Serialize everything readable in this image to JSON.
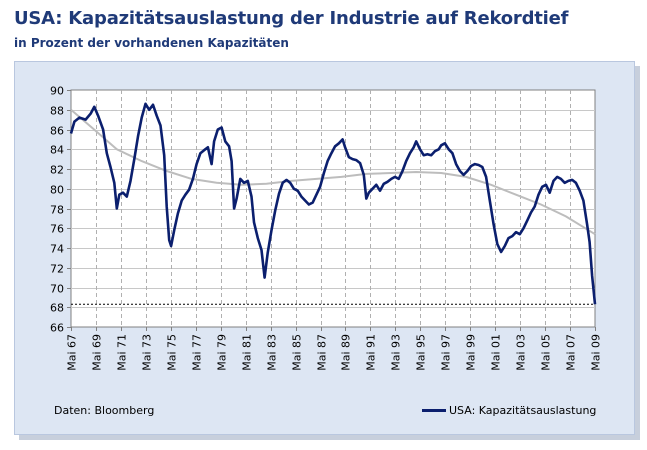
{
  "header": {
    "title": "USA: Kapazitätsauslastung der Industrie auf Rekordtief",
    "subtitle": "in Prozent der vorhandenen Kapazitäten"
  },
  "source": "Daten: Bloomberg",
  "colors": {
    "series": "#0b1f6e",
    "trend": "#bdbdbd",
    "plot_bg": "#ffffff",
    "panel_bg": "#dde6f3",
    "title": "#1f3a78"
  },
  "chart_data": {
    "type": "line",
    "title": "USA: Kapazitätsauslastung der Industrie auf Rekordtief",
    "subtitle": "in Prozent der vorhandenen Kapazitäten",
    "xlabel": "",
    "ylabel": "",
    "xlim": [
      1967.33,
      2009.33
    ],
    "ylim": [
      66,
      90
    ],
    "grid": true,
    "yticks": [
      66,
      68,
      70,
      72,
      74,
      76,
      78,
      80,
      82,
      84,
      86,
      88,
      90
    ],
    "xticks": [
      {
        "year": 1967.33,
        "label": "Mai 67"
      },
      {
        "year": 1969.33,
        "label": "Mai 69"
      },
      {
        "year": 1971.33,
        "label": "Mai 71"
      },
      {
        "year": 1973.33,
        "label": "Mai 73"
      },
      {
        "year": 1975.33,
        "label": "Mai 75"
      },
      {
        "year": 1977.33,
        "label": "Mai 77"
      },
      {
        "year": 1979.33,
        "label": "Mai 79"
      },
      {
        "year": 1981.33,
        "label": "Mai 81"
      },
      {
        "year": 1983.33,
        "label": "Mai 83"
      },
      {
        "year": 1985.33,
        "label": "Mai 85"
      },
      {
        "year": 1987.33,
        "label": "Mai 87"
      },
      {
        "year": 1989.33,
        "label": "Mai 89"
      },
      {
        "year": 1991.33,
        "label": "Mai 91"
      },
      {
        "year": 1993.33,
        "label": "Mai 93"
      },
      {
        "year": 1995.33,
        "label": "Mai 95"
      },
      {
        "year": 1997.33,
        "label": "Mai 97"
      },
      {
        "year": 1999.33,
        "label": "Mai 99"
      },
      {
        "year": 2001.33,
        "label": "Mai 01"
      },
      {
        "year": 2003.33,
        "label": "Mai 03"
      },
      {
        "year": 2005.33,
        "label": "Mai 05"
      },
      {
        "year": 2007.33,
        "label": "Mai 07"
      },
      {
        "year": 2009.33,
        "label": "Mai 09"
      }
    ],
    "series": [
      {
        "name": "USA: Kapazitätsauslastung",
        "points": [
          [
            1967.33,
            85.6
          ],
          [
            1967.6,
            86.8
          ],
          [
            1968.0,
            87.2
          ],
          [
            1968.5,
            87.0
          ],
          [
            1968.9,
            87.6
          ],
          [
            1969.2,
            88.3
          ],
          [
            1969.5,
            87.4
          ],
          [
            1969.9,
            86.0
          ],
          [
            1970.2,
            83.6
          ],
          [
            1970.5,
            82.2
          ],
          [
            1970.8,
            80.6
          ],
          [
            1971.0,
            78.0
          ],
          [
            1971.2,
            79.4
          ],
          [
            1971.5,
            79.6
          ],
          [
            1971.8,
            79.2
          ],
          [
            1972.1,
            80.8
          ],
          [
            1972.4,
            83.0
          ],
          [
            1972.7,
            85.3
          ],
          [
            1973.0,
            87.2
          ],
          [
            1973.3,
            88.6
          ],
          [
            1973.6,
            88.0
          ],
          [
            1973.9,
            88.5
          ],
          [
            1974.2,
            87.4
          ],
          [
            1974.5,
            86.4
          ],
          [
            1974.8,
            83.4
          ],
          [
            1975.0,
            78.2
          ],
          [
            1975.2,
            74.8
          ],
          [
            1975.35,
            74.2
          ],
          [
            1975.6,
            75.8
          ],
          [
            1975.9,
            77.5
          ],
          [
            1976.2,
            78.8
          ],
          [
            1976.5,
            79.4
          ],
          [
            1976.8,
            79.9
          ],
          [
            1977.1,
            81.0
          ],
          [
            1977.4,
            82.5
          ],
          [
            1977.7,
            83.6
          ],
          [
            1978.0,
            83.9
          ],
          [
            1978.3,
            84.2
          ],
          [
            1978.6,
            82.5
          ],
          [
            1978.8,
            84.8
          ],
          [
            1979.1,
            86.0
          ],
          [
            1979.4,
            86.2
          ],
          [
            1979.7,
            84.8
          ],
          [
            1980.0,
            84.3
          ],
          [
            1980.2,
            82.8
          ],
          [
            1980.4,
            78.0
          ],
          [
            1980.6,
            79.0
          ],
          [
            1980.9,
            81.0
          ],
          [
            1981.2,
            80.6
          ],
          [
            1981.5,
            80.8
          ],
          [
            1981.8,
            79.2
          ],
          [
            1982.0,
            76.6
          ],
          [
            1982.3,
            75.0
          ],
          [
            1982.6,
            73.8
          ],
          [
            1982.85,
            71.0
          ],
          [
            1983.1,
            73.5
          ],
          [
            1983.4,
            75.8
          ],
          [
            1983.7,
            77.8
          ],
          [
            1984.0,
            79.5
          ],
          [
            1984.3,
            80.6
          ],
          [
            1984.6,
            80.9
          ],
          [
            1984.9,
            80.6
          ],
          [
            1985.2,
            80.0
          ],
          [
            1985.5,
            79.8
          ],
          [
            1985.8,
            79.2
          ],
          [
            1986.1,
            78.8
          ],
          [
            1986.4,
            78.4
          ],
          [
            1986.7,
            78.6
          ],
          [
            1987.0,
            79.4
          ],
          [
            1987.3,
            80.2
          ],
          [
            1987.6,
            81.6
          ],
          [
            1987.9,
            82.8
          ],
          [
            1988.2,
            83.6
          ],
          [
            1988.5,
            84.3
          ],
          [
            1988.8,
            84.6
          ],
          [
            1989.1,
            85.0
          ],
          [
            1989.3,
            84.2
          ],
          [
            1989.6,
            83.2
          ],
          [
            1989.9,
            83.0
          ],
          [
            1990.2,
            82.9
          ],
          [
            1990.5,
            82.6
          ],
          [
            1990.8,
            81.4
          ],
          [
            1991.0,
            79.0
          ],
          [
            1991.2,
            79.6
          ],
          [
            1991.5,
            80.0
          ],
          [
            1991.8,
            80.4
          ],
          [
            1992.1,
            79.8
          ],
          [
            1992.4,
            80.5
          ],
          [
            1992.7,
            80.7
          ],
          [
            1993.0,
            81.0
          ],
          [
            1993.3,
            81.2
          ],
          [
            1993.6,
            81.0
          ],
          [
            1993.9,
            81.8
          ],
          [
            1994.2,
            82.8
          ],
          [
            1994.5,
            83.6
          ],
          [
            1994.8,
            84.2
          ],
          [
            1995.0,
            84.8
          ],
          [
            1995.3,
            84.0
          ],
          [
            1995.6,
            83.4
          ],
          [
            1995.9,
            83.5
          ],
          [
            1996.2,
            83.4
          ],
          [
            1996.5,
            83.8
          ],
          [
            1996.8,
            84.0
          ],
          [
            1997.0,
            84.4
          ],
          [
            1997.3,
            84.6
          ],
          [
            1997.6,
            84.0
          ],
          [
            1997.9,
            83.6
          ],
          [
            1998.2,
            82.5
          ],
          [
            1998.5,
            81.8
          ],
          [
            1998.8,
            81.4
          ],
          [
            1999.1,
            81.8
          ],
          [
            1999.4,
            82.3
          ],
          [
            1999.7,
            82.5
          ],
          [
            2000.0,
            82.4
          ],
          [
            2000.3,
            82.2
          ],
          [
            2000.6,
            81.2
          ],
          [
            2000.9,
            78.8
          ],
          [
            2001.2,
            76.4
          ],
          [
            2001.5,
            74.4
          ],
          [
            2001.8,
            73.6
          ],
          [
            2002.1,
            74.2
          ],
          [
            2002.4,
            75.0
          ],
          [
            2002.7,
            75.2
          ],
          [
            2003.0,
            75.6
          ],
          [
            2003.3,
            75.4
          ],
          [
            2003.6,
            76.0
          ],
          [
            2003.9,
            76.8
          ],
          [
            2004.2,
            77.6
          ],
          [
            2004.5,
            78.2
          ],
          [
            2004.8,
            79.4
          ],
          [
            2005.1,
            80.2
          ],
          [
            2005.4,
            80.4
          ],
          [
            2005.7,
            79.6
          ],
          [
            2006.0,
            80.8
          ],
          [
            2006.3,
            81.2
          ],
          [
            2006.6,
            81.0
          ],
          [
            2006.9,
            80.6
          ],
          [
            2007.2,
            80.8
          ],
          [
            2007.5,
            80.9
          ],
          [
            2007.8,
            80.6
          ],
          [
            2008.1,
            79.8
          ],
          [
            2008.4,
            78.8
          ],
          [
            2008.7,
            76.4
          ],
          [
            2008.9,
            74.6
          ],
          [
            2009.1,
            71.2
          ],
          [
            2009.33,
            68.3
          ]
        ]
      },
      {
        "name": "Trend",
        "points": [
          [
            1967.33,
            88.0
          ],
          [
            1969,
            86.2
          ],
          [
            1971,
            84.0
          ],
          [
            1973,
            82.8
          ],
          [
            1975,
            81.8
          ],
          [
            1977,
            81.0
          ],
          [
            1979,
            80.6
          ],
          [
            1981,
            80.4
          ],
          [
            1983,
            80.5
          ],
          [
            1985,
            80.8
          ],
          [
            1987,
            81.0
          ],
          [
            1989,
            81.2
          ],
          [
            1991,
            81.5
          ],
          [
            1993,
            81.6
          ],
          [
            1995,
            81.7
          ],
          [
            1997,
            81.6
          ],
          [
            1999,
            81.2
          ],
          [
            2001,
            80.4
          ],
          [
            2003,
            79.4
          ],
          [
            2005,
            78.4
          ],
          [
            2007,
            77.2
          ],
          [
            2009.33,
            75.4
          ]
        ]
      }
    ],
    "reference_line": {
      "value": 68.3,
      "style": "dotted"
    },
    "legend": [
      {
        "label": "USA: Kapazitätsauslastung",
        "position": "bottom-right"
      }
    ]
  }
}
